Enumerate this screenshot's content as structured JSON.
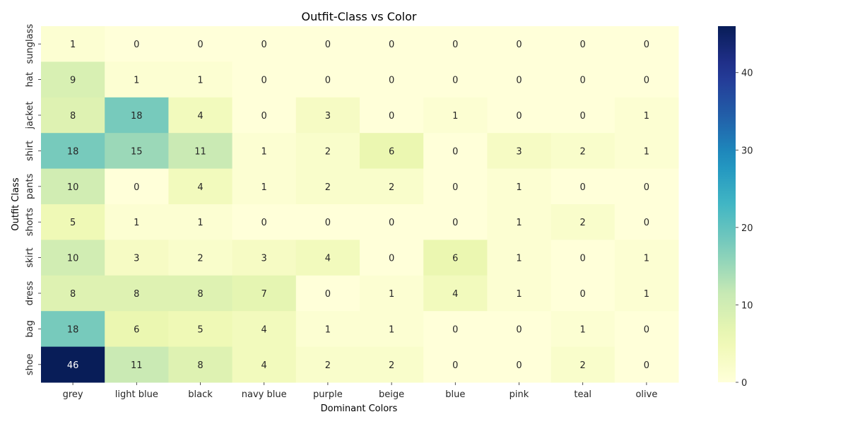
{
  "chart_data": {
    "type": "heatmap",
    "title": "Outfit-Class vs Color",
    "xlabel": "Dominant Colors",
    "ylabel": "Outfit Class",
    "x_categories": [
      "grey",
      "light blue",
      "black",
      "navy blue",
      "purple",
      "beige",
      "blue",
      "pink",
      "teal",
      "olive"
    ],
    "y_categories": [
      "sunglass",
      "hat",
      "jacket",
      "shirt",
      "pants",
      "shorts",
      "skirt",
      "dress",
      "bag",
      "shoe"
    ],
    "values": [
      [
        1,
        0,
        0,
        0,
        0,
        0,
        0,
        0,
        0,
        0
      ],
      [
        9,
        1,
        1,
        0,
        0,
        0,
        0,
        0,
        0,
        0
      ],
      [
        8,
        18,
        4,
        0,
        3,
        0,
        1,
        0,
        0,
        1
      ],
      [
        18,
        15,
        11,
        1,
        2,
        6,
        0,
        3,
        2,
        1
      ],
      [
        10,
        0,
        4,
        1,
        2,
        2,
        0,
        1,
        0,
        0
      ],
      [
        5,
        1,
        1,
        0,
        0,
        0,
        0,
        1,
        2,
        0
      ],
      [
        10,
        3,
        2,
        3,
        4,
        0,
        6,
        1,
        0,
        1
      ],
      [
        8,
        8,
        8,
        7,
        0,
        1,
        4,
        1,
        0,
        1
      ],
      [
        18,
        6,
        5,
        4,
        1,
        1,
        0,
        0,
        1,
        0
      ],
      [
        46,
        11,
        8,
        4,
        2,
        2,
        0,
        0,
        2,
        0
      ]
    ],
    "colorbar": {
      "min": 0,
      "max": 46,
      "ticks": [
        0,
        10,
        20,
        30,
        40
      ],
      "colormap": "YlGnBu"
    },
    "grid": false,
    "legend": "colorbar-right"
  }
}
